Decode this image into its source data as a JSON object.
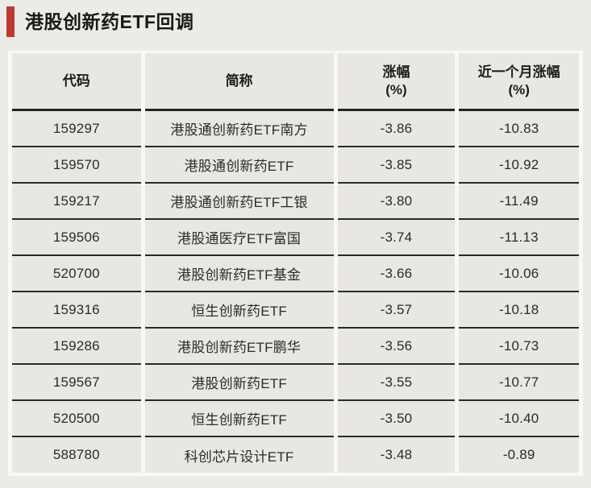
{
  "header": {
    "title": "港股创新药ETF回调"
  },
  "colors": {
    "accent_red": "#bf3a34",
    "page_background": "#edebe6",
    "cell_background": "#e9e7e1",
    "divider_white": "#f9f8f4",
    "row_line": "#2a2a2a"
  },
  "chart_data": {
    "type": "table",
    "title": "港股创新药ETF回调",
    "columns": [
      {
        "label": "代码",
        "sub": ""
      },
      {
        "label": "简称",
        "sub": ""
      },
      {
        "label": "涨幅",
        "sub": "(%)"
      },
      {
        "label": "近一个月涨幅",
        "sub": "(%)"
      }
    ],
    "rows": [
      [
        "159297",
        "港股通创新药ETF南方",
        "-3.86",
        "-10.83"
      ],
      [
        "159570",
        "港股通创新药ETF",
        "-3.85",
        "-10.92"
      ],
      [
        "159217",
        "港股通创新药ETF工银",
        "-3.80",
        "-11.49"
      ],
      [
        "159506",
        "港股通医疗ETF富国",
        "-3.74",
        "-11.13"
      ],
      [
        "520700",
        "港股创新药ETF基金",
        "-3.66",
        "-10.06"
      ],
      [
        "159316",
        "恒生创新药ETF",
        "-3.57",
        "-10.18"
      ],
      [
        "159286",
        "港股创新药ETF鹏华",
        "-3.56",
        "-10.73"
      ],
      [
        "159567",
        "港股创新药ETF",
        "-3.55",
        "-10.77"
      ],
      [
        "520500",
        "恒生创新药ETF",
        "-3.50",
        "-10.40"
      ],
      [
        "588780",
        "科创芯片设计ETF",
        "-3.48",
        "-0.89"
      ]
    ]
  }
}
